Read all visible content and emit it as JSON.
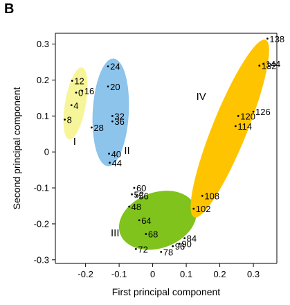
{
  "panel_label": "B",
  "chart_data": {
    "type": "scatter",
    "title": "",
    "xlabel": "First principal component",
    "ylabel": "Second principal component",
    "xlim": [
      -0.29,
      0.37
    ],
    "ylim": [
      -0.31,
      0.33
    ],
    "xticks": [
      -0.2,
      -0.1,
      0,
      0.1,
      0.2,
      0.3
    ],
    "xtick_labels": [
      "-0.2",
      "-0.1",
      "0",
      "0.1",
      "0.2",
      "0.3"
    ],
    "yticks": [
      -0.3,
      -0.2,
      -0.1,
      0,
      0.1,
      0.2,
      0.3
    ],
    "ytick_labels": [
      "-0.3",
      "-0.2",
      "-0.1",
      "0",
      "0.1",
      "0.2",
      "0.3"
    ],
    "grid": false,
    "points": [
      {
        "label": "0",
        "x": -0.228,
        "y": 0.165
      },
      {
        "label": "4",
        "x": -0.242,
        "y": 0.13
      },
      {
        "label": "8",
        "x": -0.262,
        "y": 0.09
      },
      {
        "label": "12",
        "x": -0.24,
        "y": 0.198
      },
      {
        "label": "16",
        "x": -0.21,
        "y": 0.17
      },
      {
        "label": "20",
        "x": -0.133,
        "y": 0.182
      },
      {
        "label": "24",
        "x": -0.133,
        "y": 0.238
      },
      {
        "label": "28",
        "x": -0.182,
        "y": 0.068
      },
      {
        "label": "32",
        "x": -0.12,
        "y": 0.1
      },
      {
        "label": "36",
        "x": -0.12,
        "y": 0.085
      },
      {
        "label": "40",
        "x": -0.13,
        "y": -0.005
      },
      {
        "label": "44",
        "x": -0.128,
        "y": -0.03
      },
      {
        "label": "48",
        "x": -0.07,
        "y": -0.152
      },
      {
        "label": "52",
        "x": -0.062,
        "y": -0.118
      },
      {
        "label": "56",
        "x": -0.048,
        "y": -0.122
      },
      {
        "label": "60",
        "x": -0.055,
        "y": -0.1
      },
      {
        "label": "64",
        "x": -0.04,
        "y": -0.19
      },
      {
        "label": "68",
        "x": -0.02,
        "y": -0.228
      },
      {
        "label": "72",
        "x": -0.05,
        "y": -0.27
      },
      {
        "label": "78",
        "x": 0.025,
        "y": -0.278
      },
      {
        "label": "84",
        "x": 0.095,
        "y": -0.24
      },
      {
        "label": "90",
        "x": 0.08,
        "y": -0.255
      },
      {
        "label": "96",
        "x": 0.06,
        "y": -0.262
      },
      {
        "label": "102",
        "x": 0.122,
        "y": -0.158
      },
      {
        "label": "108",
        "x": 0.148,
        "y": -0.122
      },
      {
        "label": "114",
        "x": 0.247,
        "y": 0.072
      },
      {
        "label": "120",
        "x": 0.255,
        "y": 0.1
      },
      {
        "label": "126",
        "x": 0.3,
        "y": 0.112
      },
      {
        "label": "132",
        "x": 0.318,
        "y": 0.24
      },
      {
        "label": "138",
        "x": 0.342,
        "y": 0.315
      },
      {
        "label": "144",
        "x": 0.33,
        "y": 0.245
      }
    ],
    "groups": [
      {
        "name": "I",
        "color": "#f7f59a",
        "label_x": -0.237,
        "label_y": 0.02,
        "cx": -0.23,
        "cy": 0.135,
        "rx": 0.105,
        "ry": 0.03,
        "angle": -80
      },
      {
        "name": "II",
        "color": "#8cc4ec",
        "label_x": -0.085,
        "label_y": -0.005,
        "cx": -0.125,
        "cy": 0.11,
        "rx": 0.155,
        "ry": 0.052,
        "angle": -87
      },
      {
        "name": "III",
        "color": "#7fc31c",
        "label_x": -0.125,
        "label_y": -0.235,
        "cx": 0.015,
        "cy": -0.19,
        "rx": 0.115,
        "ry": 0.08,
        "angle": -20
      },
      {
        "name": "IV",
        "color": "#ffc400",
        "label_x": 0.13,
        "label_y": 0.145,
        "cx": 0.23,
        "cy": 0.065,
        "rx": 0.275,
        "ry": 0.05,
        "angle": -68
      }
    ]
  }
}
